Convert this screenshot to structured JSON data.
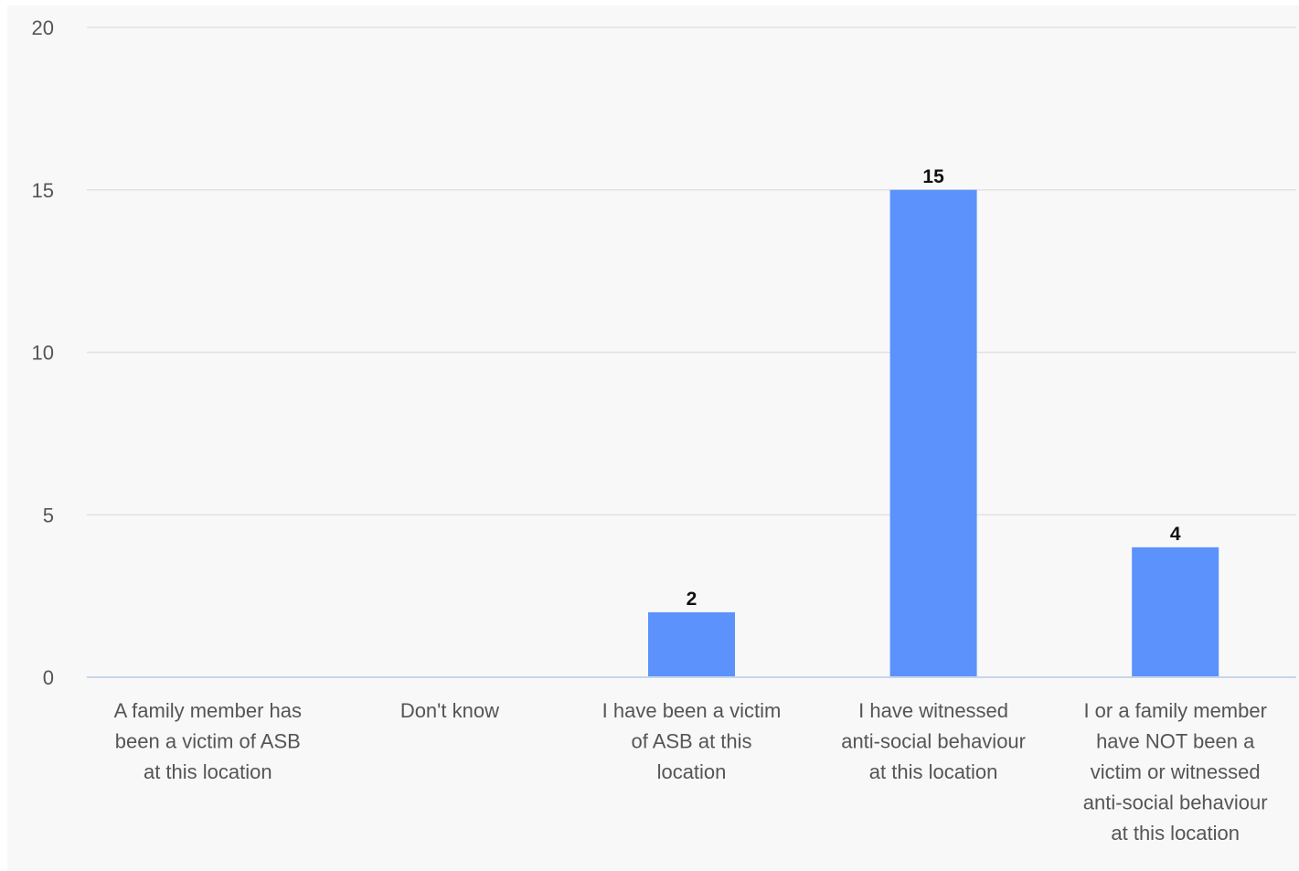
{
  "chart_data": {
    "type": "bar",
    "title": "",
    "xlabel": "",
    "ylabel": "",
    "categories": [
      "A family member has been a victim of ASB at this location",
      "Don't know",
      "I have been a victim of ASB at this location",
      "I have witnessed anti-social behaviour at this location",
      "I or a family member have NOT been a victim or witnessed anti-social behaviour at this location"
    ],
    "category_label_lines": [
      [
        "A family member has",
        "been a victim of ASB",
        "at this location"
      ],
      [
        "Don't know"
      ],
      [
        "I have been a victim",
        "of ASB at this",
        "location"
      ],
      [
        "I have witnessed",
        "anti-social behaviour",
        "at this location"
      ],
      [
        "I or a family member",
        "have NOT been a",
        "victim or witnessed",
        "anti-social behaviour",
        "at this location"
      ]
    ],
    "values": [
      0,
      0,
      2,
      15,
      4
    ],
    "data_labels": [
      "",
      "",
      "2",
      "15",
      "4"
    ],
    "yticks": [
      "0",
      "5",
      "10",
      "15",
      "20"
    ],
    "ylim": [
      0,
      20
    ],
    "grid": true,
    "legend": "none",
    "bar_color": "#5b92fb",
    "grid_color": "#e2e2e2",
    "axis_color": "#c8d6e8",
    "background": "#f8f8f8"
  }
}
